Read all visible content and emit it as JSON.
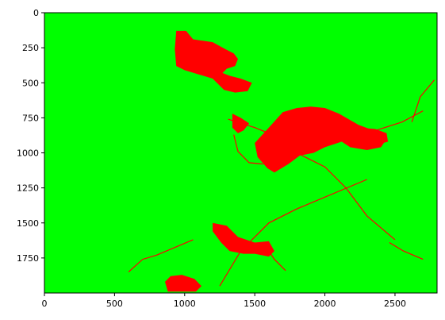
{
  "chart_data": {
    "type": "heatmap",
    "title": "",
    "xlabel": "",
    "ylabel": "",
    "xlim": [
      0,
      2800
    ],
    "ylim": [
      2000,
      0
    ],
    "xticks": [
      0,
      500,
      1000,
      1500,
      2000,
      2500
    ],
    "yticks": [
      0,
      250,
      500,
      750,
      1000,
      1250,
      1500,
      1750
    ],
    "grid": false,
    "legend": "none",
    "colors": {
      "background_class": "#00ff00",
      "foreground_class": "#ff0000",
      "sparse_class": "#4a7a6a"
    },
    "regions": [
      {
        "name": "upper-center-cluster",
        "points": [
          [
            940,
            130
          ],
          [
            1010,
            130
          ],
          [
            1060,
            190
          ],
          [
            1200,
            210
          ],
          [
            1290,
            260
          ],
          [
            1350,
            290
          ],
          [
            1380,
            330
          ],
          [
            1360,
            380
          ],
          [
            1300,
            400
          ],
          [
            1270,
            430
          ],
          [
            1320,
            450
          ],
          [
            1400,
            470
          ],
          [
            1480,
            500
          ],
          [
            1450,
            560
          ],
          [
            1360,
            570
          ],
          [
            1280,
            550
          ],
          [
            1200,
            470
          ],
          [
            1100,
            440
          ],
          [
            1000,
            410
          ],
          [
            940,
            380
          ],
          [
            930,
            260
          ]
        ]
      },
      {
        "name": "central-large-cluster",
        "points": [
          [
            1700,
            710
          ],
          [
            1800,
            680
          ],
          [
            1900,
            670
          ],
          [
            2000,
            680
          ],
          [
            2100,
            720
          ],
          [
            2240,
            800
          ],
          [
            2320,
            830
          ],
          [
            2400,
            850
          ],
          [
            2440,
            900
          ],
          [
            2400,
            960
          ],
          [
            2300,
            980
          ],
          [
            2180,
            960
          ],
          [
            2120,
            920
          ],
          [
            2000,
            960
          ],
          [
            1920,
            1000
          ],
          [
            1820,
            1020
          ],
          [
            1740,
            1080
          ],
          [
            1640,
            1140
          ],
          [
            1590,
            1110
          ],
          [
            1520,
            1030
          ],
          [
            1500,
            930
          ],
          [
            1600,
            820
          ]
        ]
      },
      {
        "name": "left-of-center-patch",
        "points": [
          [
            1340,
            720
          ],
          [
            1400,
            750
          ],
          [
            1460,
            790
          ],
          [
            1420,
            840
          ],
          [
            1380,
            860
          ],
          [
            1340,
            820
          ]
        ]
      },
      {
        "name": "east-patch",
        "points": [
          [
            2240,
            820
          ],
          [
            2360,
            830
          ],
          [
            2440,
            860
          ],
          [
            2450,
            920
          ],
          [
            2380,
            940
          ],
          [
            2260,
            900
          ]
        ]
      },
      {
        "name": "lower-center-cluster",
        "points": [
          [
            1200,
            1500
          ],
          [
            1300,
            1520
          ],
          [
            1380,
            1600
          ],
          [
            1500,
            1640
          ],
          [
            1600,
            1630
          ],
          [
            1640,
            1700
          ],
          [
            1600,
            1740
          ],
          [
            1500,
            1720
          ],
          [
            1420,
            1720
          ],
          [
            1320,
            1700
          ],
          [
            1260,
            1640
          ],
          [
            1200,
            1560
          ]
        ]
      },
      {
        "name": "bottom-patch",
        "points": [
          [
            860,
            1920
          ],
          [
            900,
            1880
          ],
          [
            980,
            1870
          ],
          [
            1070,
            1900
          ],
          [
            1120,
            1950
          ],
          [
            1080,
            1990
          ],
          [
            960,
            1990
          ],
          [
            880,
            1990
          ]
        ]
      }
    ],
    "lines": [
      {
        "name": "road-1",
        "points": [
          [
            1310,
            760
          ],
          [
            1500,
            820
          ],
          [
            1700,
            900
          ]
        ]
      },
      {
        "name": "road-2",
        "points": [
          [
            1800,
            1000
          ],
          [
            2000,
            1100
          ],
          [
            2150,
            1250
          ],
          [
            2300,
            1450
          ],
          [
            2500,
            1620
          ]
        ]
      },
      {
        "name": "road-3",
        "points": [
          [
            2300,
            1190
          ],
          [
            1800,
            1400
          ],
          [
            1600,
            1500
          ],
          [
            1400,
            1700
          ],
          [
            1250,
            1950
          ]
        ]
      },
      {
        "name": "road-4",
        "points": [
          [
            2100,
            900
          ],
          [
            2300,
            860
          ],
          [
            2550,
            780
          ],
          [
            2700,
            700
          ]
        ]
      },
      {
        "name": "road-5",
        "points": [
          [
            2620,
            780
          ],
          [
            2680,
            600
          ],
          [
            2780,
            480
          ]
        ]
      },
      {
        "name": "road-6",
        "points": [
          [
            600,
            1850
          ],
          [
            700,
            1760
          ],
          [
            800,
            1730
          ],
          [
            1060,
            1620
          ]
        ]
      },
      {
        "name": "road-7",
        "points": [
          [
            1350,
            870
          ],
          [
            1380,
            990
          ],
          [
            1460,
            1070
          ],
          [
            1560,
            1080
          ]
        ]
      },
      {
        "name": "road-8",
        "points": [
          [
            1560,
            1640
          ],
          [
            1640,
            1760
          ],
          [
            1720,
            1840
          ]
        ]
      },
      {
        "name": "road-9",
        "points": [
          [
            2460,
            1640
          ],
          [
            2560,
            1700
          ],
          [
            2700,
            1760
          ]
        ]
      }
    ]
  }
}
